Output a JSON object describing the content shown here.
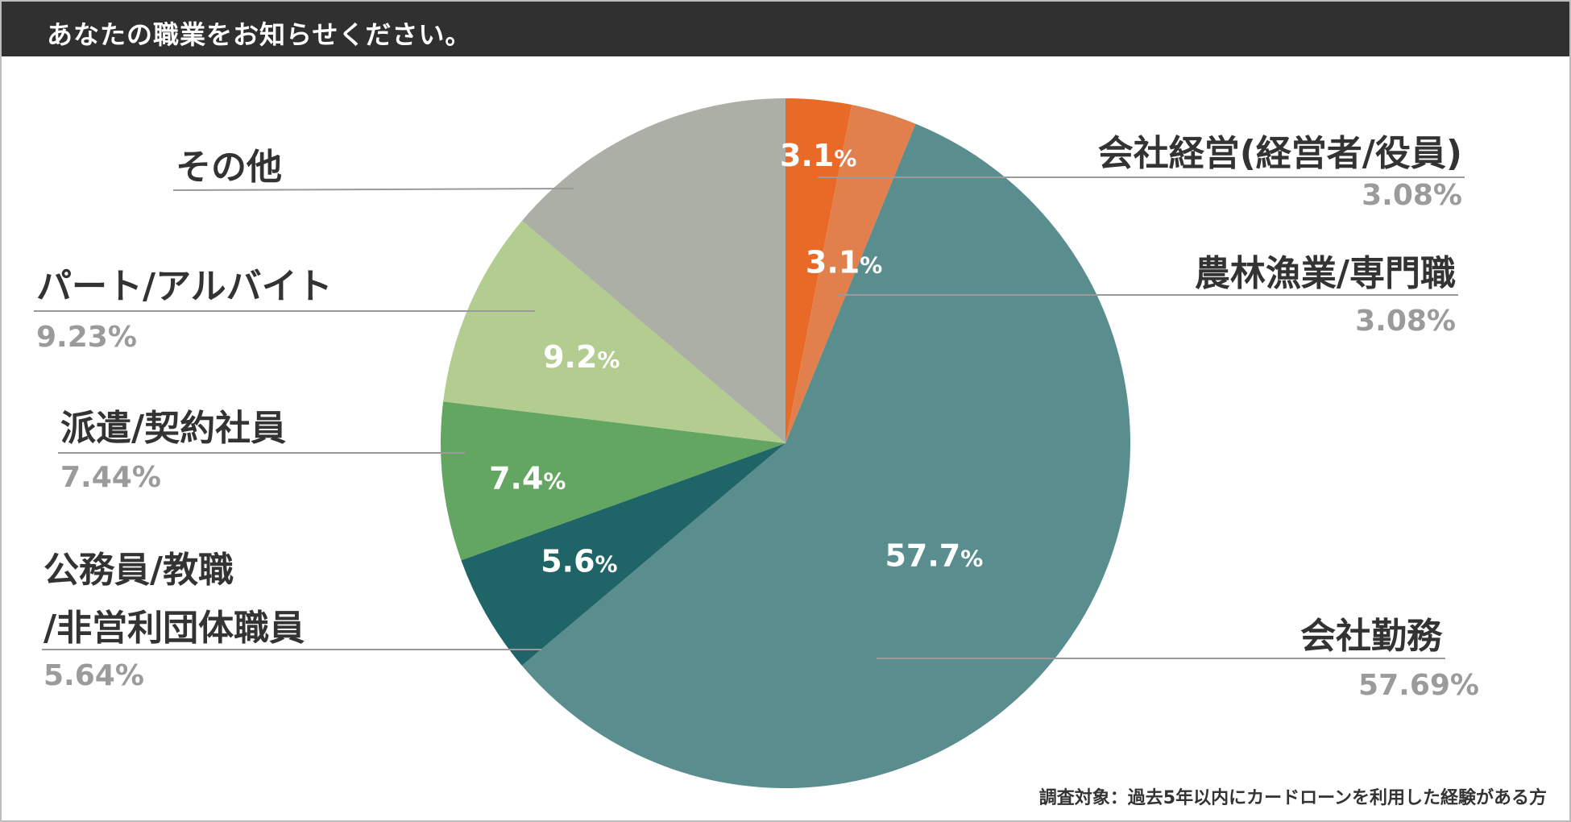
{
  "header": {
    "title": "あなたの職業をお知らせください。"
  },
  "footnote": "調査対象：過去5年以内にカードローンを利用した経験がある方",
  "chart_data": {
    "type": "pie",
    "title": "あなたの職業をお知らせください。",
    "start": "top, clockwise",
    "slices": [
      {
        "name": "会社経営(経営者/役員)",
        "value": 3.08,
        "label": "3.08%",
        "inner": "3.1",
        "color": "#E86A26"
      },
      {
        "name": "農林漁業/専門職",
        "value": 3.08,
        "label": "3.08%",
        "inner": "3.1",
        "color": "#E2804D"
      },
      {
        "name": "会社勤務",
        "value": 57.69,
        "label": "57.69%",
        "inner": "57.7",
        "color": "#5A8D8E"
      },
      {
        "name": "公務員/教職/非営利団体職員",
        "lines": [
          "公務員/教職",
          "/非営利団体職員"
        ],
        "value": 5.64,
        "label": "5.64%",
        "inner": "5.6",
        "color": "#1F6467"
      },
      {
        "name": "派遣/契約社員",
        "value": 7.44,
        "label": "7.44%",
        "inner": "7.4",
        "color": "#63A661"
      },
      {
        "name": "パート/アルバイト",
        "value": 9.23,
        "label": "9.23%",
        "inner": "9.2",
        "color": "#B3CC8F"
      },
      {
        "name": "その他",
        "value": 13.84,
        "label": "",
        "inner": "",
        "color": "#ABAFA6"
      }
    ]
  }
}
